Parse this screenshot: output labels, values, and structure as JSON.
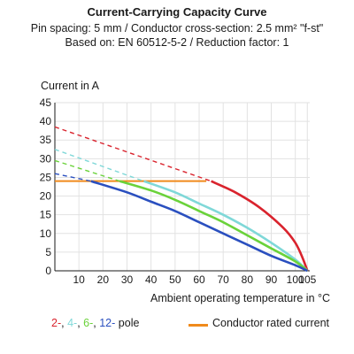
{
  "chart_data": {
    "type": "line",
    "title": "Current-Carrying Capacity Curve",
    "subtitle_lines": [
      "Pin spacing: 5 mm / Conductor cross-section: 2.5 mm² \"f-st\"",
      "Based on: EN 60512-5-2 / Reduction factor: 1"
    ],
    "ylabel": "Current in A",
    "xlabel": "Ambient operating temperature in °C",
    "xlim": [
      0,
      106
    ],
    "ylim": [
      0,
      45
    ],
    "x_ticks": [
      10,
      20,
      30,
      40,
      50,
      60,
      70,
      80,
      90,
      100,
      105
    ],
    "y_ticks": [
      0,
      5,
      10,
      15,
      20,
      25,
      30,
      35,
      40,
      45
    ],
    "grid": true,
    "legend_left": {
      "parts": [
        {
          "text": "2-",
          "color": "#d9232d"
        },
        {
          "text": ", ",
          "color": "#1a1a1a"
        },
        {
          "text": "4-",
          "color": "#7fd8d8"
        },
        {
          "text": ", ",
          "color": "#1a1a1a"
        },
        {
          "text": "6-",
          "color": "#6ad23a"
        },
        {
          "text": ", ",
          "color": "#1a1a1a"
        },
        {
          "text": "12-",
          "color": "#2a4fbf"
        },
        {
          "text": " pole",
          "color": "#1a1a1a"
        }
      ]
    },
    "legend_right": {
      "text": "Conductor rated current",
      "color": "#f08a1c"
    },
    "rated_current": {
      "value": 24,
      "x": [
        0,
        63
      ],
      "color": "#f08a1c"
    },
    "series": [
      {
        "pole": "2",
        "color": "#d9232d",
        "dashed": [
          [
            0,
            38.5
          ],
          [
            65,
            24
          ]
        ],
        "solid": [
          [
            65,
            24
          ],
          [
            75,
            21
          ],
          [
            85,
            17
          ],
          [
            95,
            11.5
          ],
          [
            100,
            7.5
          ],
          [
            103,
            3.5
          ],
          [
            105,
            0
          ]
        ]
      },
      {
        "pole": "4",
        "color": "#7fd8d8",
        "dashed": [
          [
            0,
            32.5
          ],
          [
            37,
            24
          ]
        ],
        "solid": [
          [
            37,
            24
          ],
          [
            50,
            21
          ],
          [
            60,
            18
          ],
          [
            70,
            15
          ],
          [
            80,
            11.5
          ],
          [
            90,
            7.5
          ],
          [
            100,
            3
          ],
          [
            105,
            0
          ]
        ]
      },
      {
        "pole": "6",
        "color": "#6ad23a",
        "dashed": [
          [
            0,
            29.5
          ],
          [
            27,
            24
          ]
        ],
        "solid": [
          [
            27,
            24
          ],
          [
            40,
            21.5
          ],
          [
            50,
            19
          ],
          [
            60,
            16
          ],
          [
            70,
            13
          ],
          [
            80,
            9.5
          ],
          [
            90,
            6
          ],
          [
            100,
            2.5
          ],
          [
            105,
            0
          ]
        ]
      },
      {
        "pole": "12",
        "color": "#2a4fbf",
        "dashed": [
          [
            0,
            26
          ],
          [
            15,
            24
          ]
        ],
        "solid": [
          [
            15,
            24
          ],
          [
            30,
            21
          ],
          [
            40,
            18.5
          ],
          [
            50,
            16
          ],
          [
            60,
            13
          ],
          [
            70,
            10
          ],
          [
            80,
            7
          ],
          [
            90,
            4
          ],
          [
            100,
            1.5
          ],
          [
            105,
            0
          ]
        ]
      }
    ]
  }
}
